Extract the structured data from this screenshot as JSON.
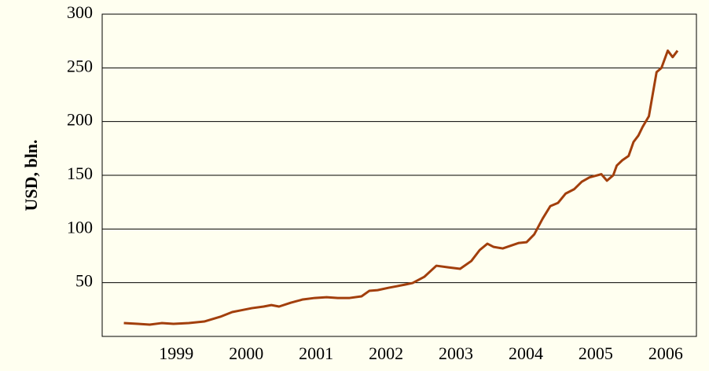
{
  "chart_data": {
    "type": "line",
    "y_label": "USD, bln.",
    "x": [
      1998.25,
      1998.45,
      1998.62,
      1998.79,
      1998.96,
      1999.18,
      1999.4,
      1999.63,
      1999.8,
      1999.91,
      2000.08,
      2000.25,
      2000.36,
      2000.47,
      2000.64,
      2000.81,
      2000.98,
      2001.15,
      2001.31,
      2001.48,
      2001.65,
      2001.76,
      2001.88,
      2002.04,
      2002.16,
      2002.27,
      2002.38,
      2002.55,
      2002.72,
      2002.89,
      2003.06,
      2003.22,
      2003.34,
      2003.45,
      2003.54,
      2003.67,
      2003.9,
      2004.01,
      2004.12,
      2004.24,
      2004.35,
      2004.46,
      2004.57,
      2004.69,
      2004.8,
      2004.91,
      2005.08,
      2005.16,
      2005.25,
      2005.3,
      2005.38,
      2005.47,
      2005.54,
      2005.61,
      2005.67,
      2005.76,
      2005.87,
      2005.94,
      2006.03,
      2006.1,
      2006.17
    ],
    "series": [
      {
        "name": "USD, bln.",
        "color": "#a23f0c",
        "values": [
          12.4,
          11.7,
          11.0,
          12.4,
          11.7,
          12.4,
          13.9,
          18.3,
          22.7,
          24.1,
          26.3,
          27.8,
          29.2,
          27.8,
          31.4,
          34.4,
          35.8,
          36.5,
          35.8,
          35.8,
          37.3,
          42.4,
          43.1,
          45.3,
          46.8,
          48.2,
          49.7,
          55.6,
          65.8,
          64.3,
          62.9,
          70.2,
          80.4,
          86.3,
          83.3,
          81.9,
          87.0,
          87.7,
          95.0,
          109.6,
          121.3,
          124.3,
          133,
          137,
          144,
          148,
          151,
          145,
          150,
          159,
          164,
          168,
          181,
          187,
          195,
          205,
          246,
          250,
          266,
          260,
          266
        ]
      }
    ],
    "xlim": [
      1997.94,
      2006.44
    ],
    "xticks": [
      1999,
      2000,
      2001,
      2002,
      2003,
      2004,
      2005,
      2006
    ],
    "ylim": [
      0,
      300
    ],
    "yticks": [
      50,
      100,
      150,
      200,
      250,
      300
    ],
    "grid": true
  }
}
